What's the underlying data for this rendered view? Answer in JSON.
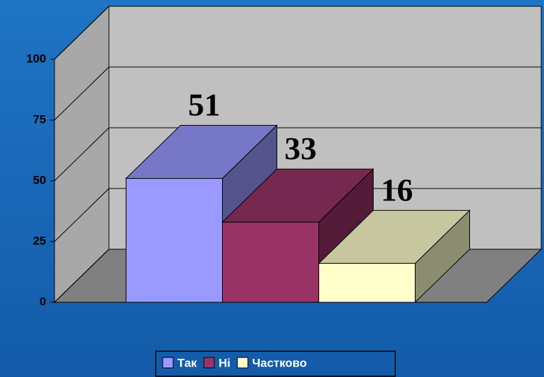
{
  "chart_data": {
    "type": "bar3d",
    "categories": [
      null
    ],
    "series": [
      {
        "name": "Так",
        "color": "#9999ff",
        "values": [
          51
        ]
      },
      {
        "name": "Ні",
        "color": "#993366",
        "values": [
          33
        ]
      },
      {
        "name": "Частково",
        "color": "#ffffcc",
        "values": [
          16
        ]
      }
    ],
    "ylim": [
      0,
      100
    ],
    "yticks": [
      0,
      25,
      50,
      75,
      100
    ],
    "grid": true,
    "legend": "bottom"
  }
}
